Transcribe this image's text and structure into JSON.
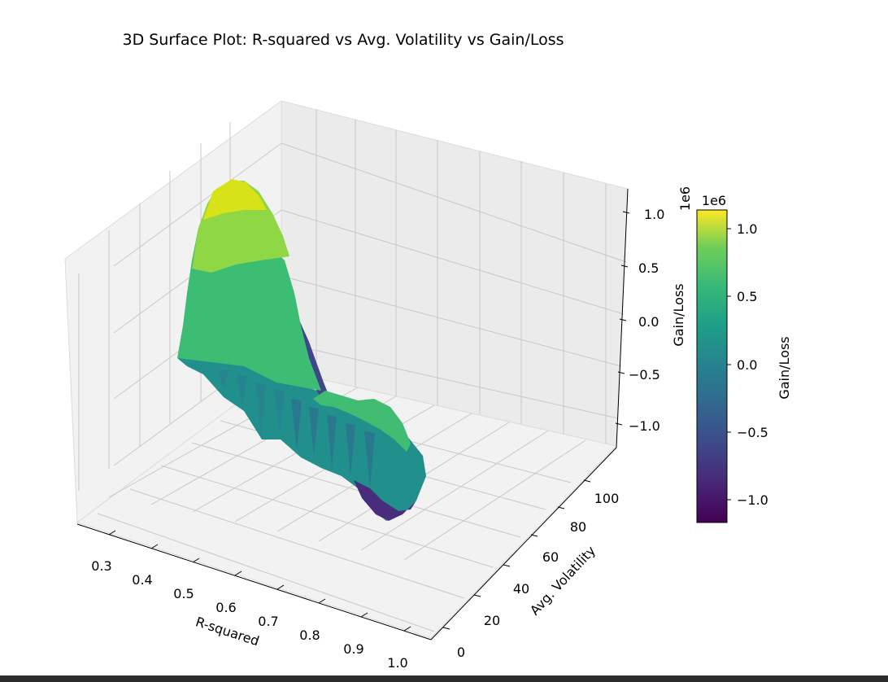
{
  "figure": {
    "title": "3D Surface Plot: R-squared vs Avg. Volatility vs Gain/Loss",
    "xlabel": "R-squared",
    "ylabel": "Avg. Volatility",
    "zlabel": "Gain/Loss",
    "z_offset": "1e6"
  },
  "colorbar": {
    "label": "Gain/Loss",
    "offset": "1e6",
    "ticks": [
      "−1.0",
      "−0.5",
      "0.0",
      "0.5",
      "1.0"
    ],
    "colormap": "viridis"
  },
  "chart_data": {
    "type": "surface",
    "title": "3D Surface Plot: R-squared vs Avg. Volatility vs Gain/Loss",
    "xlabel": "R-squared",
    "ylabel": "Avg. Volatility",
    "zlabel": "Gain/Loss",
    "xticks": [
      "0.3",
      "0.4",
      "0.5",
      "0.6",
      "0.7",
      "0.8",
      "0.9",
      "1.0"
    ],
    "yticks": [
      "0",
      "20",
      "40",
      "60",
      "80",
      "100"
    ],
    "zticks": [
      "−1.0",
      "−0.5",
      "0.0",
      "0.5",
      "1.0"
    ],
    "xlim": [
      0.25,
      1.05
    ],
    "ylim": [
      -8,
      118
    ],
    "zlim": [
      -1250000,
      1200000
    ],
    "grid": true,
    "colorbar_range": [
      -1150000,
      1150000
    ],
    "surface_ridge": {
      "r_squared": [
        0.25,
        0.33,
        0.4,
        0.47,
        0.54,
        0.61,
        0.68,
        0.75,
        0.82,
        0.88,
        0.94,
        1.0
      ],
      "avg_volatility": [
        0,
        0,
        0,
        0,
        0,
        0,
        0,
        0,
        0,
        0,
        0,
        0
      ],
      "gain_loss": [
        1100000,
        1000000,
        820000,
        560000,
        250000,
        -50000,
        -250000,
        -350000,
        -400000,
        -350000,
        -300000,
        -150000
      ]
    }
  }
}
